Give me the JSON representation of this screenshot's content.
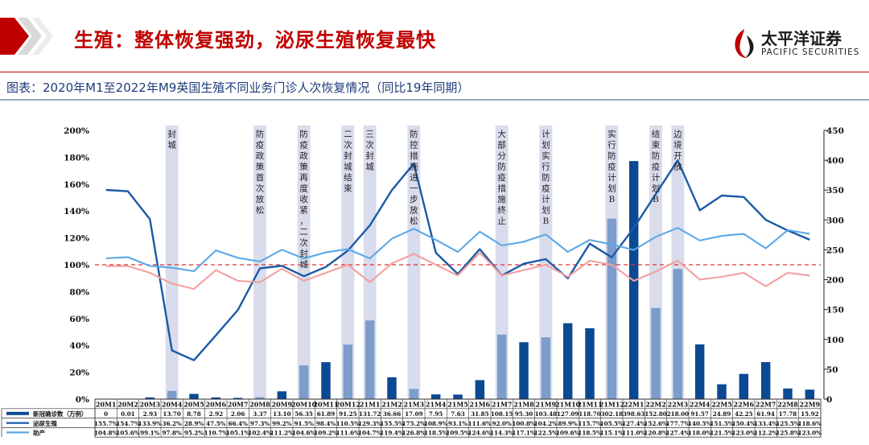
{
  "header": {
    "title": "生殖：整体恢复强劲，泌尿生殖恢复最快",
    "logo_cn": "太平洋证券",
    "logo_en": "PACIFIC SECURITIES"
  },
  "caption": "图表：2020年M1至2022年M9英国生殖不同业务门诊人次恢复情况（同比19年同期）",
  "colors": {
    "title_red": "#c00000",
    "bar_dark": "#0b4a92",
    "bar_light": "#7c9ccb",
    "line_navy": "#1a5aa8",
    "line_lightblue": "#5aa8e8",
    "line_pink": "#f4a0a0",
    "ref_line": "#e03030",
    "band": "#d9dcec"
  },
  "chart_data": {
    "type": "bar+line",
    "categories": [
      "20M1",
      "20M2",
      "20M3",
      "20M4",
      "20M5",
      "20M6",
      "20M7",
      "20M8",
      "20M9",
      "20M10",
      "20M11",
      "20M12",
      "21M1",
      "21M2",
      "21M3",
      "21M4",
      "21M5",
      "21M6",
      "21M7",
      "21M8",
      "21M9",
      "21M10",
      "21M11",
      "21M12",
      "22M1",
      "22M2",
      "22M3",
      "22M4",
      "22M5",
      "22M6",
      "22M7",
      "22M8",
      "22M9"
    ],
    "left_axis": {
      "ylim": [
        0,
        200
      ],
      "ticks": [
        "0%",
        "20%",
        "40%",
        "60%",
        "80%",
        "100%",
        "120%",
        "140%",
        "160%",
        "180%",
        "200%"
      ]
    },
    "right_axis": {
      "ylim": [
        0,
        450
      ],
      "ticks": [
        "0",
        "50",
        "100",
        "150",
        "200",
        "250",
        "300",
        "350",
        "400",
        "450"
      ]
    },
    "reference_line": 100,
    "bars": {
      "name": "新冠确诊数（万例）",
      "axis": "right",
      "values": [
        0,
        0.01,
        2.93,
        13.7,
        8.78,
        2.92,
        2.06,
        3.37,
        13.1,
        56.35,
        61.89,
        91.25,
        131.72,
        36.66,
        17.09,
        7.95,
        7.63,
        31.85,
        108.15,
        95.3,
        103.48,
        127.09,
        118.7,
        302.18,
        398.63,
        152.8,
        218.0,
        91.57,
        24.89,
        42.25,
        61.94,
        17.78,
        15.92
      ],
      "value_labels": [
        "0",
        "0.01",
        "2.93",
        "13.70",
        "8.78",
        "2.92",
        "2.06",
        "3.37",
        "13.10",
        "56.35",
        "61.89",
        "91.25",
        "131.72",
        "36.66",
        "17.09",
        "7.95",
        "7.63",
        "31.85",
        "108.15",
        "95.30",
        "103.48",
        "127.09",
        "118.70",
        "302.18",
        "398.63",
        "152.80",
        "218.00",
        "91.57",
        "24.89",
        "42.25",
        "61.94",
        "17.78",
        "15.92"
      ],
      "highlight_indices": [
        3,
        7,
        9,
        11,
        12,
        14,
        18,
        20,
        23,
        25,
        26
      ]
    },
    "series": [
      {
        "name": "泌尿生殖",
        "axis": "left",
        "color": "#1a5aa8",
        "values": [
          155.7,
          154.7,
          133.9,
          36.2,
          28.9,
          47.5,
          66.4,
          97.3,
          99.2,
          91.5,
          98.4,
          110.5,
          129.3,
          155.5,
          175.2,
          108.9,
          93.1,
          111.6,
          92.0,
          100.8,
          104.2,
          89.9,
          115.7,
          105.5,
          127.4,
          152.6,
          177.7,
          140.5,
          151.5,
          150.4,
          133.4,
          125.5,
          118.6
        ],
        "labels": [
          "155.7%",
          "154.7%",
          "133.9%",
          "36.2%",
          "28.9%",
          "47.5%",
          "66.4%",
          "97.3%",
          "99.2%",
          "91.5%",
          "98.4%",
          "110.5%",
          "129.3%",
          "155.5%",
          "175.2%",
          "108.9%",
          "93.1%",
          "111.6%",
          "92.0%",
          "100.8%",
          "104.2%",
          "89.9%",
          "115.7%",
          "105.5%",
          "127.4%",
          "152.6%",
          "177.7%",
          "140.5%",
          "151.5%",
          "150.4%",
          "133.4%",
          "125.5%",
          "118.6%"
        ]
      },
      {
        "name": "助产",
        "axis": "left",
        "color": "#5aa8e8",
        "values": [
          104.8,
          105.6,
          99.1,
          97.8,
          95.2,
          110.7,
          105.1,
          102.4,
          111.2,
          104.6,
          109.2,
          111.6,
          104.7,
          119.4,
          126.8,
          118.5,
          109.5,
          124.6,
          114.3,
          117.1,
          122.5,
          109.6,
          118.5,
          115.1,
          111.0,
          120.8,
          127.4,
          118.0,
          121.5,
          123.0,
          112.2,
          125.8,
          123.0
        ],
        "labels": [
          "104.8%",
          "105.6%",
          "99.1%",
          "97.8%",
          "95.2%",
          "110.7%",
          "105.1%",
          "102.4%",
          "111.2%",
          "104.6%",
          "109.2%",
          "111.6%",
          "104.7%",
          "119.4%",
          "126.8%",
          "118.5%",
          "109.5%",
          "124.6%",
          "114.3%",
          "117.1%",
          "122.5%",
          "109.6%",
          "118.5%",
          "115.1%",
          "111.0%",
          "120.8%",
          "127.4%",
          "118.0%",
          "121.5%",
          "123.0%",
          "112.2%",
          "125.8%",
          "123.0%"
        ]
      },
      {
        "name": "",
        "axis": "left",
        "color": "#f4a0a0",
        "values": [
          99,
          99,
          94,
          86,
          82,
          96,
          88,
          87,
          97,
          88,
          94,
          100,
          87,
          101,
          108,
          100,
          92,
          109,
          92,
          96,
          100,
          91,
          103,
          100,
          88,
          95,
          103,
          89,
          91,
          94,
          84,
          94,
          92
        ]
      }
    ],
    "table_row_labels": [
      "新冠确诊数（万例）",
      "泌尿生殖",
      "助产"
    ],
    "annotations": [
      {
        "index": 3,
        "text": "封城"
      },
      {
        "index": 7,
        "text": "防疫政策首次放松"
      },
      {
        "index": 9,
        "text": "防疫政策再度收紧，二次封城"
      },
      {
        "index": 11,
        "text": "二次封城结束"
      },
      {
        "index": 12,
        "text": "三次封城"
      },
      {
        "index": 14,
        "text": "防控措施进一步放松"
      },
      {
        "index": 18,
        "text": "大部分防疫措施终止"
      },
      {
        "index": 20,
        "text": "计划实行防疫计划B"
      },
      {
        "index": 23,
        "text": "实行防疫计划B"
      },
      {
        "index": 25,
        "text": "结束防疫计划B"
      },
      {
        "index": 26,
        "text": "边境开放"
      }
    ]
  }
}
